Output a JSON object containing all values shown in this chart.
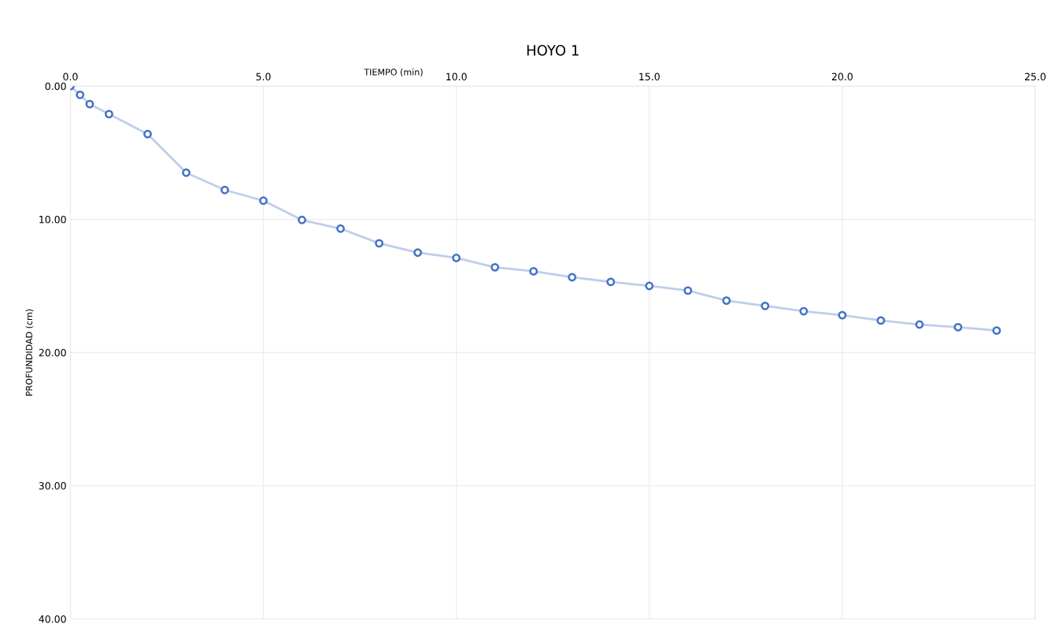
{
  "chart_data": {
    "type": "line",
    "title": "HOYO 1",
    "xlabel": "TIEMPO (min)",
    "ylabel": "PROFUNDIDAD (cm)",
    "x": [
      0,
      0.25,
      0.5,
      1,
      2,
      3,
      4,
      5,
      6,
      7,
      8,
      9,
      10,
      11,
      12,
      13,
      14,
      15,
      16,
      17,
      18,
      19,
      20,
      21,
      22,
      23,
      24
    ],
    "series": [
      {
        "color": "#4472c4",
        "values": [
          0,
          0.65,
          1.35,
          2.1,
          3.6,
          6.5,
          7.8,
          8.6,
          10.05,
          10.7,
          11.8,
          12.5,
          12.9,
          13.6,
          13.9,
          14.35,
          14.7,
          15.0,
          15.35,
          16.1,
          16.5,
          16.9,
          17.2,
          17.6,
          17.9,
          18.1,
          18.35
        ]
      }
    ],
    "xlim": [
      0,
      25
    ],
    "ylim": [
      40,
      0
    ],
    "xticks": [
      {
        "value": 0,
        "label": "0.0"
      },
      {
        "value": 5,
        "label": "5.0"
      },
      {
        "value": 10,
        "label": "10.0"
      },
      {
        "value": 15,
        "label": "15.0"
      },
      {
        "value": 20,
        "label": "20.0"
      },
      {
        "value": 25,
        "label": "25.0"
      }
    ],
    "yticks": [
      {
        "value": 0,
        "label": "0.00"
      },
      {
        "value": 10,
        "label": "10.00"
      },
      {
        "value": 20,
        "label": "20.00"
      },
      {
        "value": 30,
        "label": "30.00"
      },
      {
        "value": 40,
        "label": "40.00"
      }
    ],
    "grid": true,
    "marker": "circle",
    "line_style": "solid"
  }
}
